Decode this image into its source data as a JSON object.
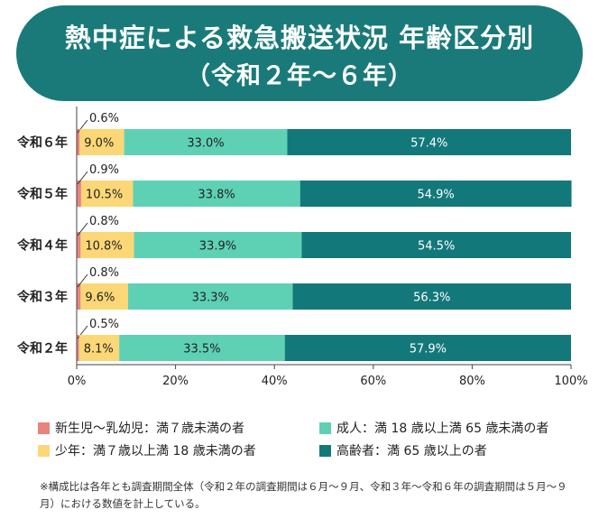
{
  "header": {
    "title": "熱中症による救急搬送状況 年齢区分別",
    "subtitle": "（令和２年〜６年）"
  },
  "chart_data": {
    "type": "bar",
    "orientation": "horizontal",
    "stacked": "percent",
    "categories": [
      "令和６年",
      "令和５年",
      "令和４年",
      "令和３年",
      "令和２年"
    ],
    "series": [
      {
        "name": "新生児〜乳幼児：満７歳未満の者",
        "color": "#e8837e",
        "values": [
          0.6,
          0.9,
          0.8,
          0.8,
          0.5
        ],
        "labels": [
          "0.6%",
          "0.9%",
          "0.8%",
          "0.8%",
          "0.5%"
        ]
      },
      {
        "name": "少年：満７歳以上満 18 歳未満の者",
        "color": "#fbd777",
        "values": [
          9.0,
          10.5,
          10.8,
          9.6,
          8.1
        ],
        "labels": [
          "9.0%",
          "10.5%",
          "10.8%",
          "9.6%",
          "8.1%"
        ]
      },
      {
        "name": "成人：満 18 歳以上満 65 歳未満の者",
        "color": "#5ed1b5",
        "values": [
          33.0,
          33.8,
          33.9,
          33.3,
          33.5
        ],
        "labels": [
          "33.0%",
          "33.8%",
          "33.9%",
          "33.3%",
          "33.5%"
        ]
      },
      {
        "name": "高齢者：満 65 歳以上の者",
        "color": "#13787a",
        "values": [
          57.4,
          54.9,
          54.5,
          56.3,
          57.9
        ],
        "labels": [
          "57.4%",
          "54.9%",
          "54.5%",
          "56.3%",
          "57.9%"
        ]
      }
    ],
    "x_ticks": [
      "0%",
      "20%",
      "40%",
      "60%",
      "80%",
      "100%"
    ],
    "xlim": [
      0,
      100
    ],
    "grid": false,
    "legend_position": "bottom"
  },
  "note": "※構成比は各年とも調査期間全体（令和２年の調査期間は６月〜９月、令和３年〜令和６年の調査期間は５月〜９月）における数値を計上している。",
  "colors": {
    "title_bg": "#1a7a7a"
  }
}
